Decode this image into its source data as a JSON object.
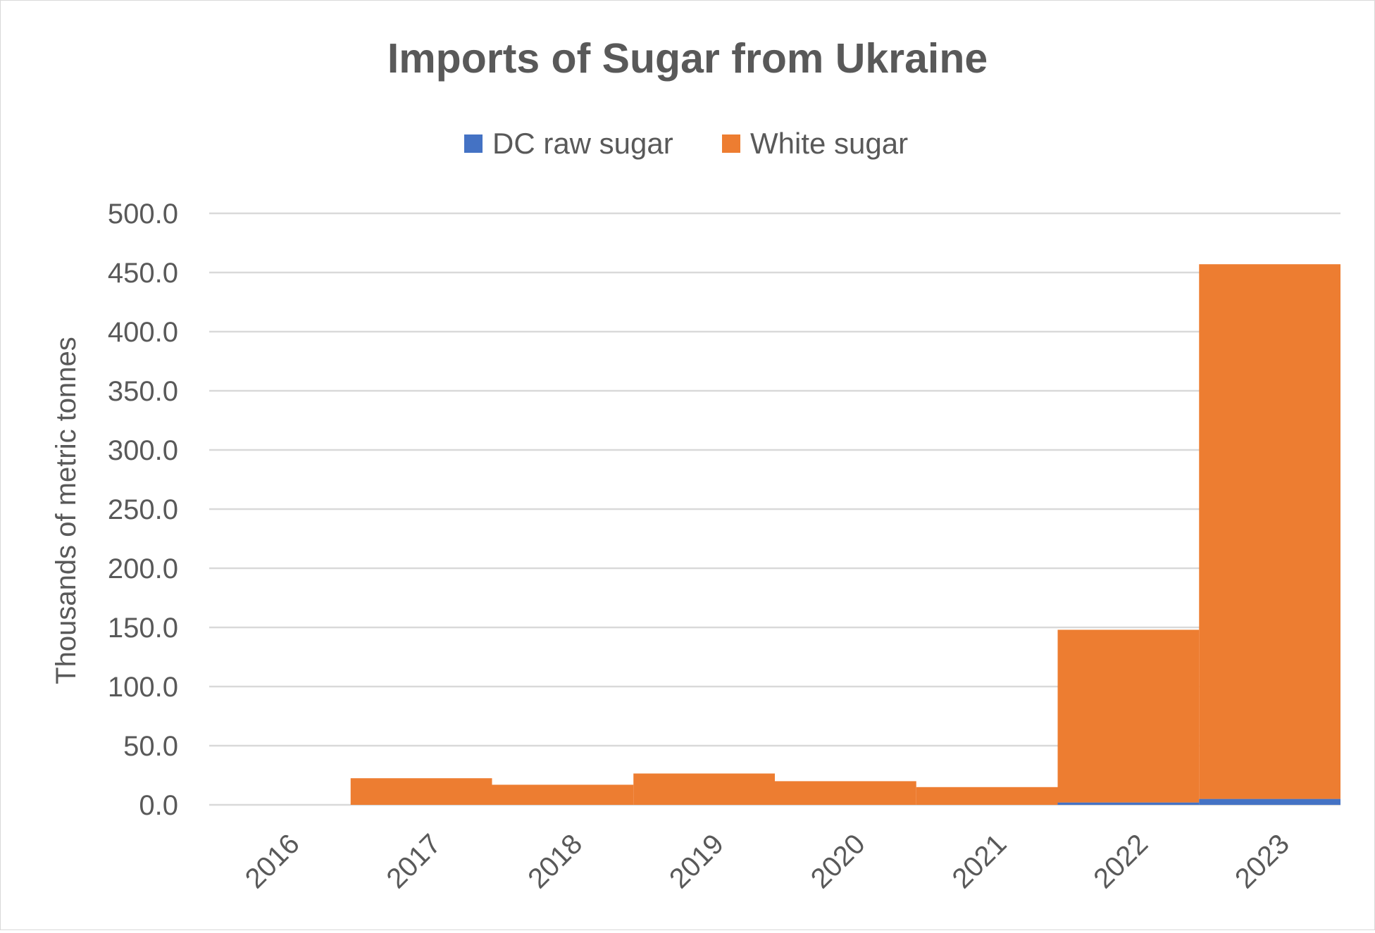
{
  "chart_data": {
    "type": "bar",
    "stacked": true,
    "title": "Imports of Sugar from Ukraine",
    "xlabel": "",
    "ylabel": "Thousands of metric tonnes",
    "categories": [
      "2016",
      "2017",
      "2018",
      "2019",
      "2020",
      "2021",
      "2022",
      "2023"
    ],
    "series": [
      {
        "name": "DC raw sugar",
        "color": "#4472c4",
        "values": [
          0,
          0,
          0,
          0,
          0,
          0,
          2,
          5
        ]
      },
      {
        "name": "White sugar",
        "color": "#ed7d31",
        "values": [
          0,
          22.5,
          17,
          26.5,
          20,
          15,
          146,
          452
        ]
      }
    ],
    "yticks": [
      "0.0",
      "50.0",
      "100.0",
      "150.0",
      "200.0",
      "250.0",
      "300.0",
      "350.0",
      "400.0",
      "450.0",
      "500.0"
    ],
    "ylim": [
      0,
      500
    ],
    "grid": true,
    "legend_position": "top"
  }
}
